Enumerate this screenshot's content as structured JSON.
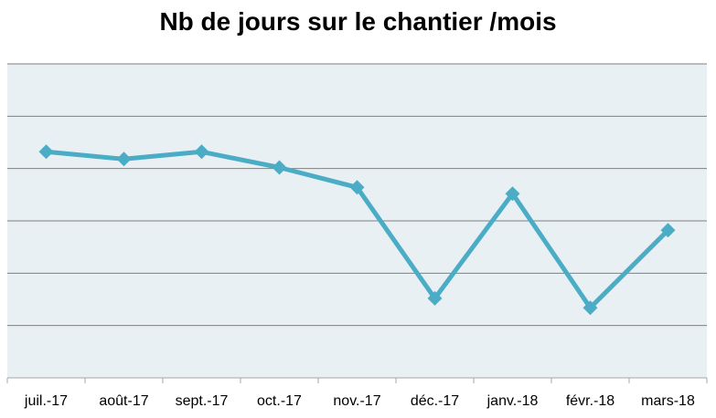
{
  "chart_data": {
    "type": "line",
    "title": "Nb de jours sur le chantier /mois",
    "xlabel": "",
    "ylabel": "",
    "categories": [
      "juil.-17",
      "août-17",
      "sept.-17",
      "oct.-17",
      "nov.-17",
      "déc.-17",
      "janv.-18",
      "févr.-18",
      "mars-18"
    ],
    "series": [
      {
        "values": [
          21.6,
          20.9,
          21.6,
          20.1,
          18.2,
          7.6,
          17.6,
          6.7,
          14.1
        ]
      }
    ],
    "ylim": [
      0,
      30
    ],
    "yticks": [
      0,
      5,
      10,
      15,
      20,
      25,
      30
    ],
    "y_tick_labels_visible": false,
    "grid": true,
    "legend": "none",
    "colors": {
      "plot_background": "#e8f0f4",
      "gridline": "#808080",
      "axis": "#a6a6a6",
      "series_line": "#4bacc6",
      "marker": "#4bacc6"
    }
  }
}
